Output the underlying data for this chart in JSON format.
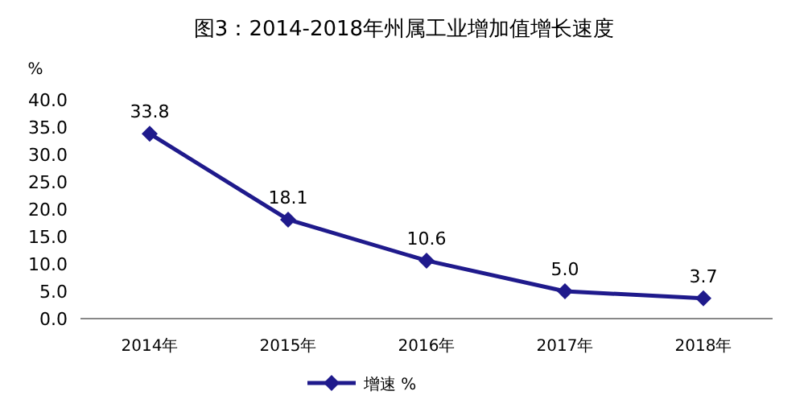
{
  "chart_data": {
    "type": "line",
    "title": "图3：2014-2018年州属工业增加值增长速度",
    "ylabel": "%",
    "categories": [
      "2014年",
      "2015年",
      "2016年",
      "2017年",
      "2018年"
    ],
    "series": [
      {
        "name": "增速 %",
        "color": "#1f1a8c",
        "values": [
          33.8,
          18.1,
          10.6,
          5.0,
          3.7
        ],
        "value_labels": [
          "33.8",
          "18.1",
          "10.6",
          "5.0",
          "3.7"
        ]
      }
    ],
    "ylim": [
      0,
      40
    ],
    "yticks": [
      {
        "value": 0,
        "label": "0.0"
      },
      {
        "value": 5,
        "label": "5.0"
      },
      {
        "value": 10,
        "label": "10.0"
      },
      {
        "value": 15,
        "label": "15.0"
      },
      {
        "value": 20,
        "label": "20.0"
      },
      {
        "value": 25,
        "label": "25.0"
      },
      {
        "value": 30,
        "label": "30.0"
      },
      {
        "value": 35,
        "label": "35.0"
      },
      {
        "value": 40,
        "label": "40.0"
      }
    ],
    "marker": "diamond",
    "line_style": "solid",
    "legend": "bottom",
    "grid": false
  }
}
